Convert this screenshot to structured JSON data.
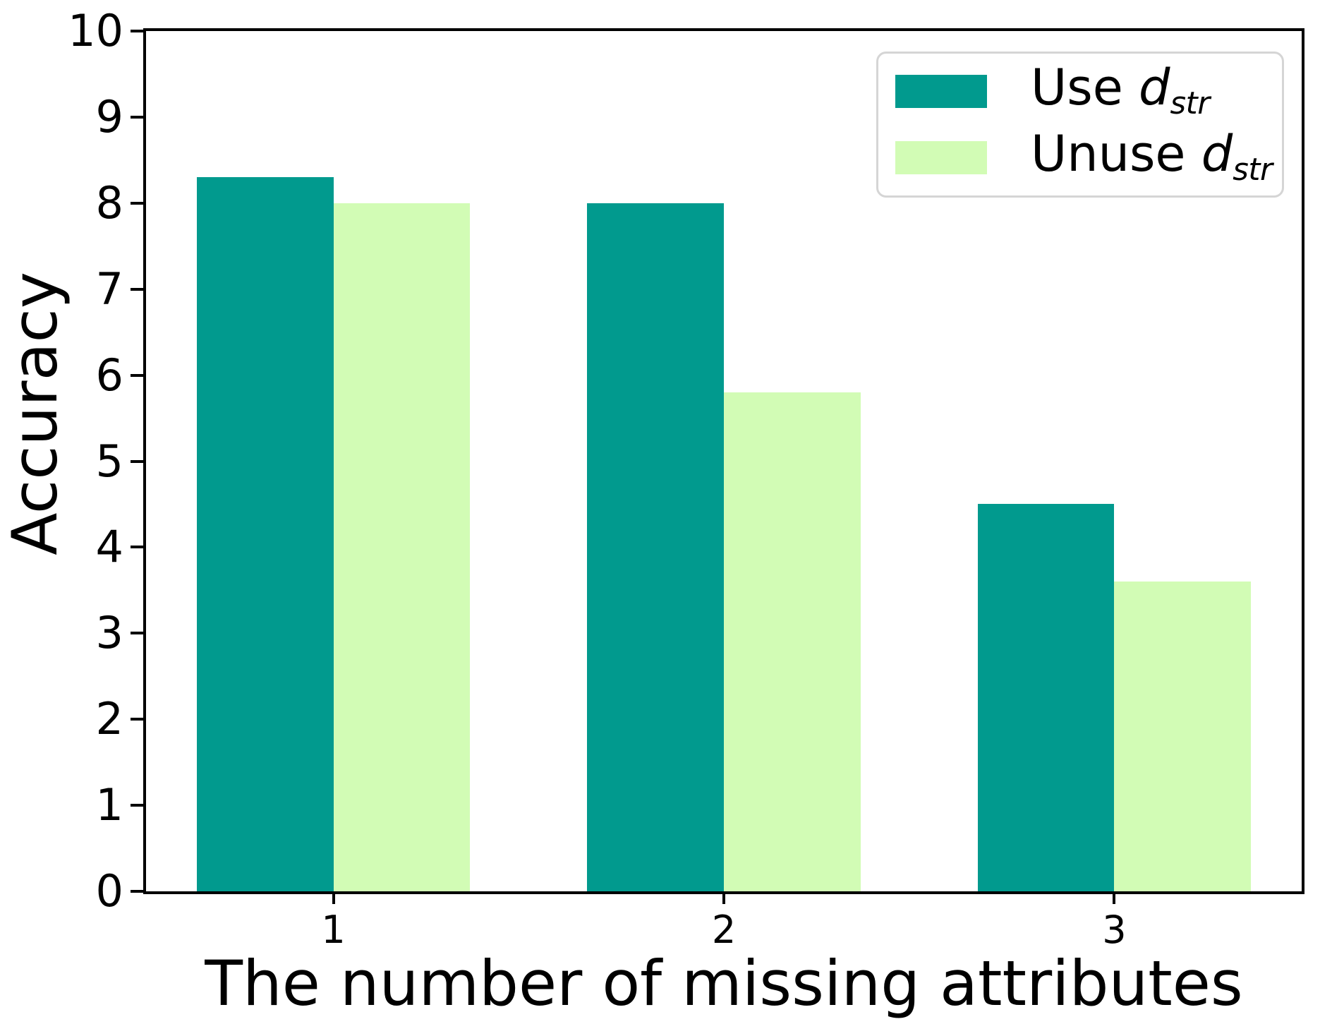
{
  "chart_data": {
    "type": "bar",
    "title": "",
    "xlabel": "The number of missing attributes",
    "ylabel": "Accuracy",
    "categories": [
      "1",
      "2",
      "3"
    ],
    "x_positions": [
      1,
      2,
      3
    ],
    "xlim": [
      0.52,
      3.48
    ],
    "ylim": [
      0,
      10
    ],
    "yticks": [
      0,
      1,
      2,
      3,
      4,
      5,
      6,
      7,
      8,
      9,
      10
    ],
    "bar_width": 0.35,
    "grid": false,
    "background_color": "#ffffff",
    "axis_color": "#000000",
    "legend_position": "upper right",
    "series": [
      {
        "name": "Use d_str",
        "label_prefix": "Use ",
        "math_base": "d",
        "math_sub": "str",
        "color": "#019a8e",
        "offset": -0.35,
        "values": [
          8.3,
          8.0,
          4.5
        ]
      },
      {
        "name": "Unuse d_str",
        "label_prefix": "Unuse ",
        "math_base": "d",
        "math_sub": "str",
        "color": "#d2fcb5",
        "offset": 0,
        "values": [
          8.0,
          5.8,
          3.6
        ]
      }
    ]
  }
}
